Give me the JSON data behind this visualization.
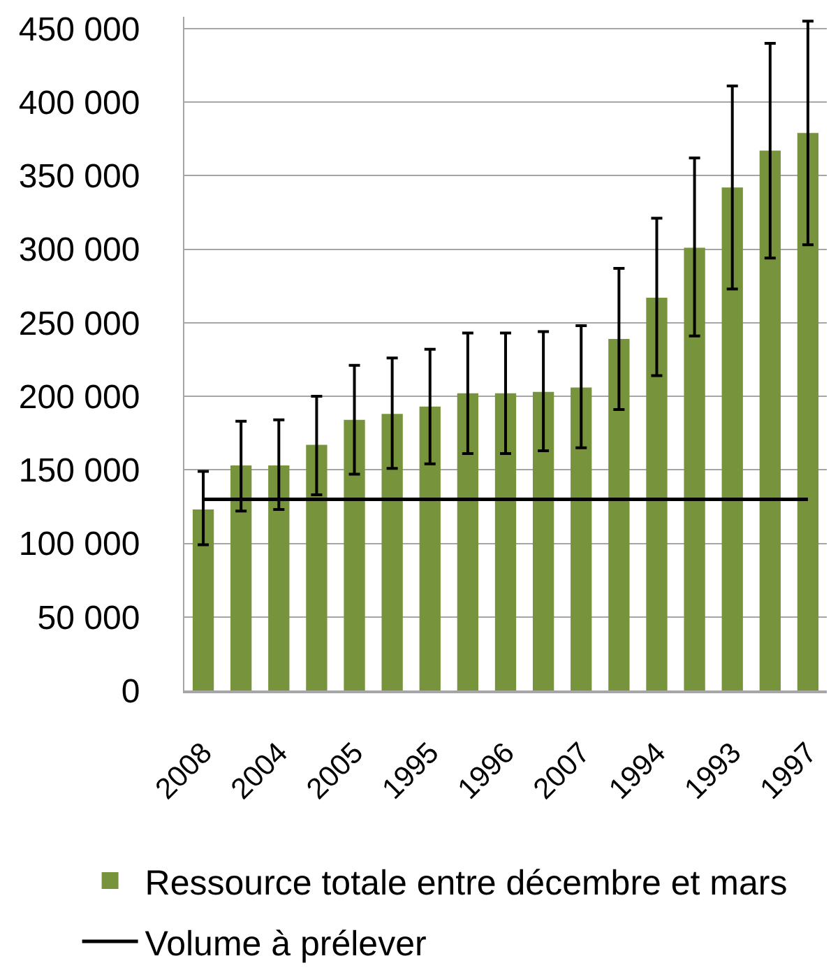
{
  "chart_data": {
    "type": "bar",
    "categories": [
      "2008",
      null,
      "2004",
      null,
      "2005",
      null,
      "1995",
      null,
      "1996",
      null,
      "2007",
      null,
      "1994",
      null,
      "1993",
      null,
      "1997"
    ],
    "series": [
      {
        "name": "Ressource totale entre décembre et mars",
        "color": "#77933c",
        "values": [
          123000,
          153000,
          153000,
          167000,
          184000,
          188000,
          193000,
          202000,
          202000,
          203000,
          206000,
          239000,
          267000,
          301000,
          342000,
          367000,
          379000
        ],
        "errors": [
          [
            99000,
            149000
          ],
          [
            122000,
            183000
          ],
          [
            123000,
            184000
          ],
          [
            133000,
            200000
          ],
          [
            147000,
            221000
          ],
          [
            151000,
            226000
          ],
          [
            154000,
            232000
          ],
          [
            161000,
            243000
          ],
          [
            161000,
            243000
          ],
          [
            163000,
            244000
          ],
          [
            165000,
            248000
          ],
          [
            191000,
            287000
          ],
          [
            214000,
            321000
          ],
          [
            241000,
            362000
          ],
          [
            273000,
            411000
          ],
          [
            294000,
            440000
          ],
          [
            303000,
            455000
          ]
        ]
      }
    ],
    "ylim": [
      0,
      458000
    ],
    "yticks": [
      0,
      {
        "value": 50000,
        "label": "50 000"
      },
      {
        "value": 100000,
        "label": "100 000"
      },
      {
        "value": 150000,
        "label": "150 000"
      },
      {
        "value": 200000,
        "label": "200 000"
      },
      {
        "value": 250000,
        "label": "250 000"
      },
      {
        "value": 300000,
        "label": "300 000"
      },
      {
        "value": 350000,
        "label": "350 000"
      },
      {
        "value": 400000,
        "label": "400 000"
      },
      {
        "value": 450000,
        "label": "450 000"
      }
    ],
    "grid": "y",
    "legend": "bottom",
    "ref_lines": [
      {
        "axis": "y",
        "value": 130000,
        "label": "Volume à prélever",
        "color": "#000000",
        "line_style": "solid"
      }
    ]
  }
}
